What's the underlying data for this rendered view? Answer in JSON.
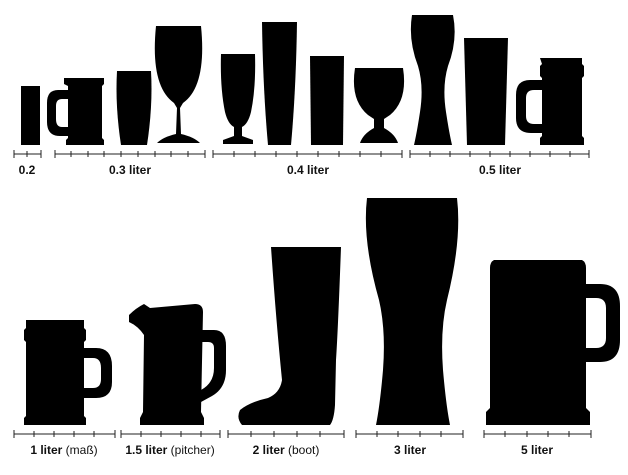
{
  "labels": {
    "r1_02": {
      "size": "0.2",
      "note": ""
    },
    "r1_03": {
      "size": "0.3 liter",
      "note": ""
    },
    "r1_04": {
      "size": "0.4 liter",
      "note": ""
    },
    "r1_05": {
      "size": "0.5 liter",
      "note": ""
    },
    "r2_1": {
      "size": "1 liter",
      "note": " (maß)"
    },
    "r2_15": {
      "size": "1.5 liter",
      "note": " (pitcher)"
    },
    "r2_2": {
      "size": "2 liter",
      "note": " (boot)"
    },
    "r2_3": {
      "size": "3 liter",
      "note": ""
    },
    "r2_5": {
      "size": "5 liter",
      "note": ""
    }
  },
  "colors": {
    "ink": "#000000",
    "background": "#ffffff"
  },
  "icons": [
    "small-glass-icon",
    "mug-icon",
    "tumbler-icon",
    "goblet-icon",
    "footed-pilsner-icon",
    "tall-glass-icon",
    "pint-glass-icon",
    "snifter-icon",
    "weizen-glass-icon",
    "stein-icon",
    "mass-mug-icon",
    "pitcher-icon",
    "boot-glass-icon",
    "giant-weizen-glass-icon",
    "giant-stein-icon"
  ]
}
